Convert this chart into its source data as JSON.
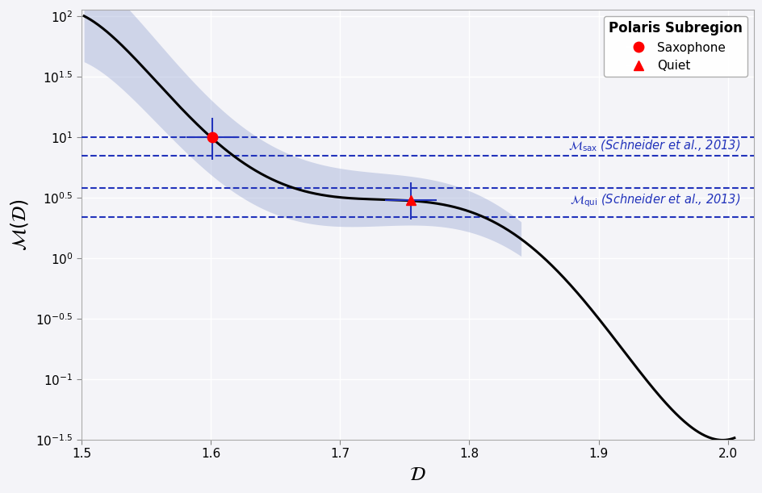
{
  "xlim": [
    1.5,
    2.02
  ],
  "ylim_log": [
    -1.5,
    2.05
  ],
  "xlabel": "$\\mathcal{D}$",
  "ylabel": "$\\mathcal{M}(\\mathcal{D})$",
  "curve_color": "black",
  "curve_lw": 2.2,
  "band_color": "#8899cc",
  "band_alpha": 0.35,
  "sax_point_D": 1.601,
  "sax_point_M": 10.0,
  "sax_D_err": [
    0.02,
    0.02
  ],
  "sax_M_err_lo": 3.5,
  "sax_M_err_hi": 4.5,
  "qui_point_D": 1.755,
  "qui_point_M": 3.0,
  "qui_D_err": [
    0.02,
    0.02
  ],
  "qui_M_err_lo": 0.9,
  "qui_M_err_hi": 1.2,
  "sax_band_lo": 7.0,
  "sax_band_hi": 10.0,
  "qui_band_lo": 2.2,
  "qui_band_hi": 3.8,
  "marker_color": "red",
  "band_line_color": "#2233bb",
  "legend_title": "Polaris Subregion",
  "sax_label": "Saxophone",
  "qui_label": "Quiet",
  "sax_annotation": "$\\mathcal{M}_{\\mathrm{sax}}$ (Schneider et al., 2013)",
  "qui_annotation": "$\\mathcal{M}_{\\mathrm{qui}}$ (Schneider et al., 2013)",
  "bg_color": "#f4f4f8",
  "grid_color": "white",
  "label_fontsize": 17,
  "tick_fontsize": 11,
  "annot_fontsize": 10.5,
  "curve_D_start": 1.502,
  "curve_D_end": 2.005,
  "band_D_start": 1.502,
  "band_D_end": 1.84,
  "y_ticks_exp": [
    -1.5,
    -1.0,
    -0.5,
    0.0,
    0.5,
    1.0,
    1.5,
    2.0
  ]
}
